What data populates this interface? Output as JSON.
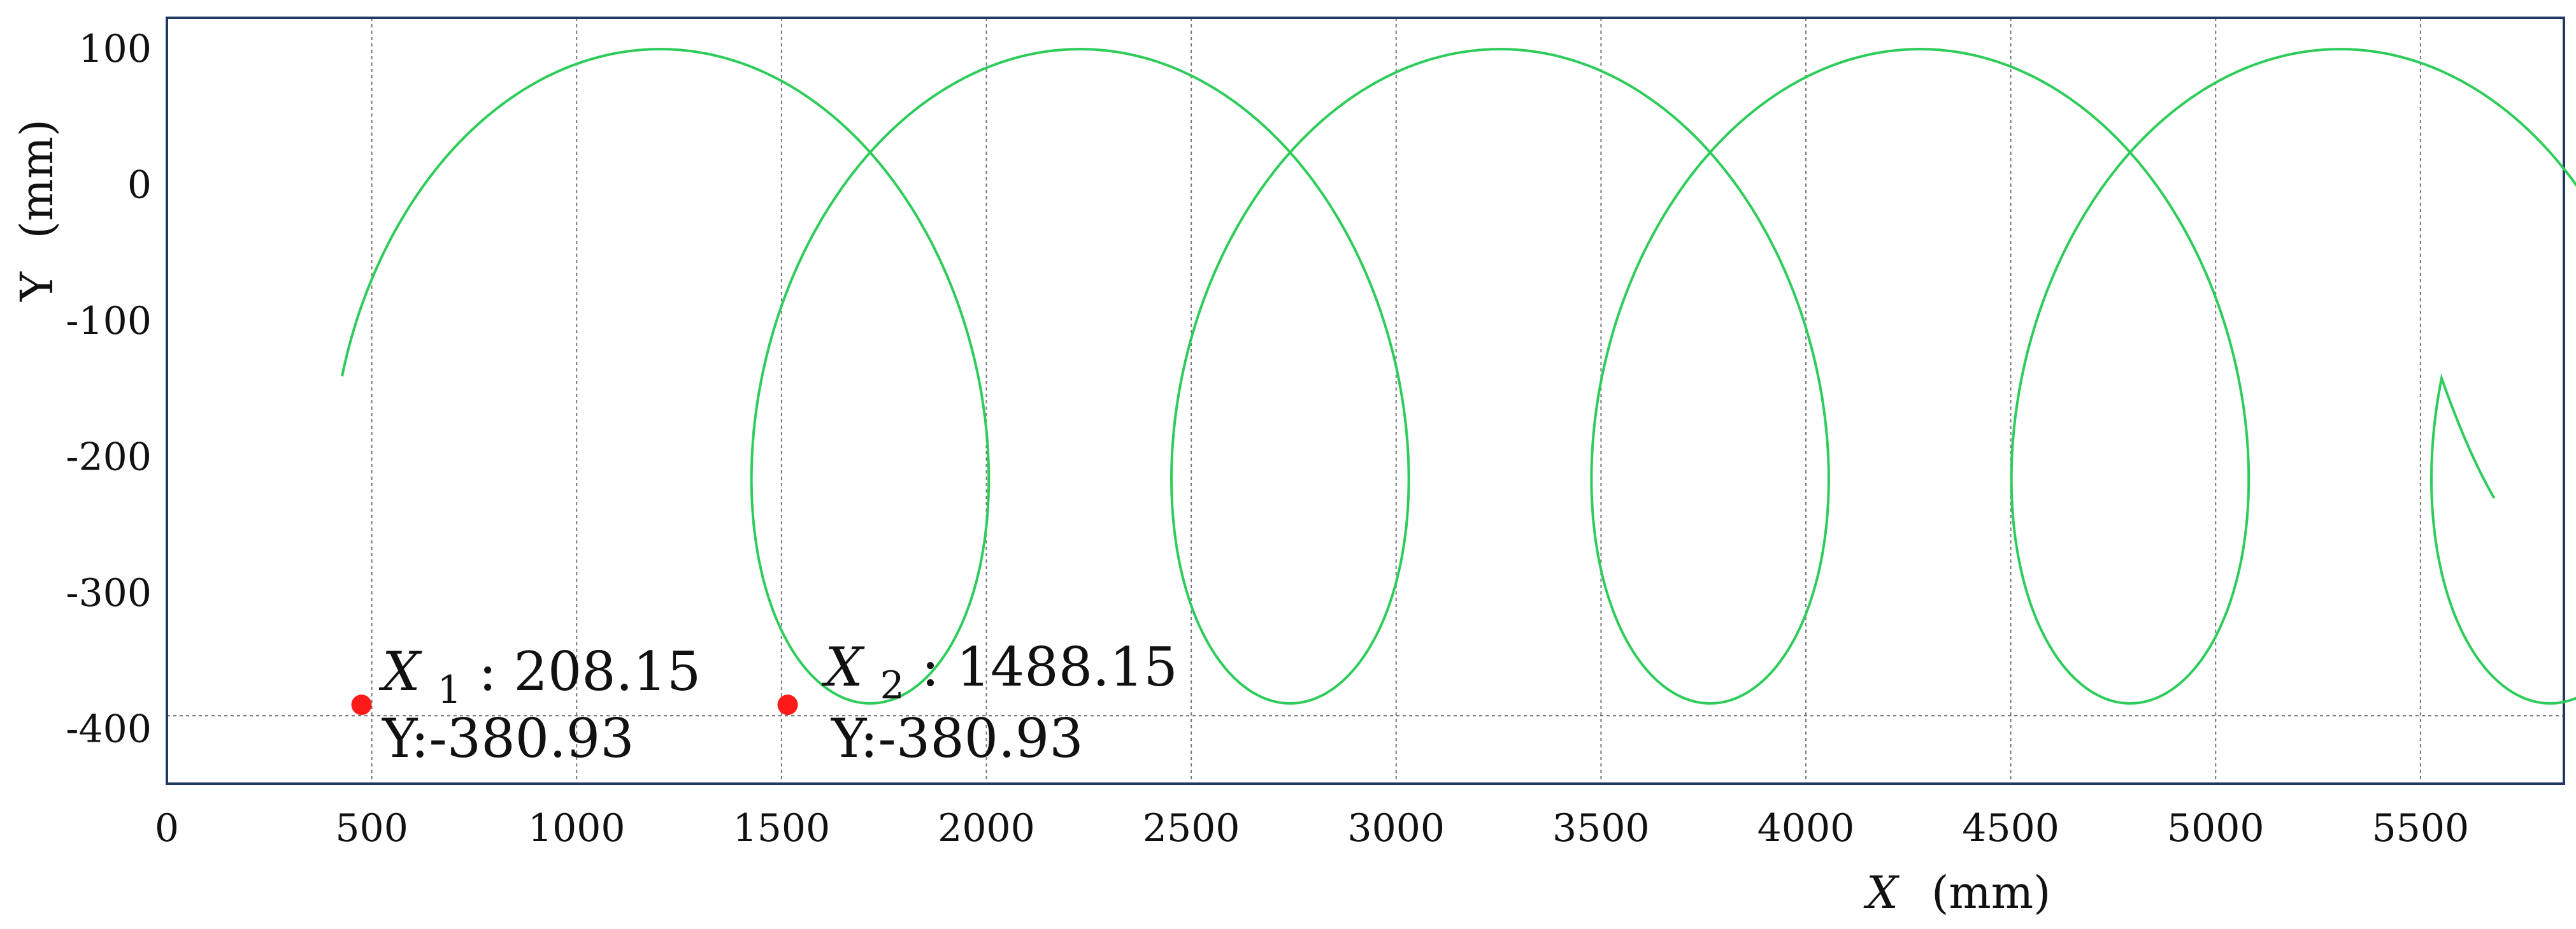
{
  "chart_data": {
    "type": "line",
    "title": "",
    "xlabel": "X",
    "xlabel_unit": "(mm)",
    "ylabel": "Y",
    "ylabel_unit": "(mm)",
    "xlim": [
      0,
      5850
    ],
    "ylim": [
      -440,
      123
    ],
    "x_ticks": [
      0,
      500,
      1000,
      1500,
      2000,
      2500,
      3000,
      3500,
      4000,
      4500,
      5000,
      5500
    ],
    "y_ticks": [
      100,
      0,
      -100,
      -200,
      -300,
      -400
    ],
    "x_tick_labels": [
      "0",
      "500",
      "1000",
      "1500",
      "2000",
      "2500",
      "3000",
      "3500",
      "4000",
      "4500",
      "5000",
      "5500"
    ],
    "y_tick_labels": [
      "100",
      "0",
      "-100",
      "-200",
      "-300",
      "-400"
    ],
    "grid": {
      "vertical": true,
      "horizontal": false,
      "style": "dotted"
    },
    "reference_line_y": -390,
    "series": [
      {
        "color": "#2ecc5a",
        "curve": "trochoid",
        "start_x": 435,
        "x_period": 1025,
        "loops": 5,
        "y_min": -380.93,
        "y_max": 100,
        "end_x": 5680,
        "end_y": -230
      }
    ],
    "markers": [
      {
        "x": 475,
        "y": -382,
        "color": "#ff1a1a"
      },
      {
        "x": 1515,
        "y": -382,
        "color": "#ff1a1a"
      }
    ],
    "annotations": [
      {
        "var": "X",
        "sub": "1",
        "value": ": 208.15",
        "y_text": "Y:-380.93"
      },
      {
        "var": "X",
        "sub": "2",
        "value": ": 1488.15",
        "y_text": "Y:-380.93"
      }
    ]
  }
}
